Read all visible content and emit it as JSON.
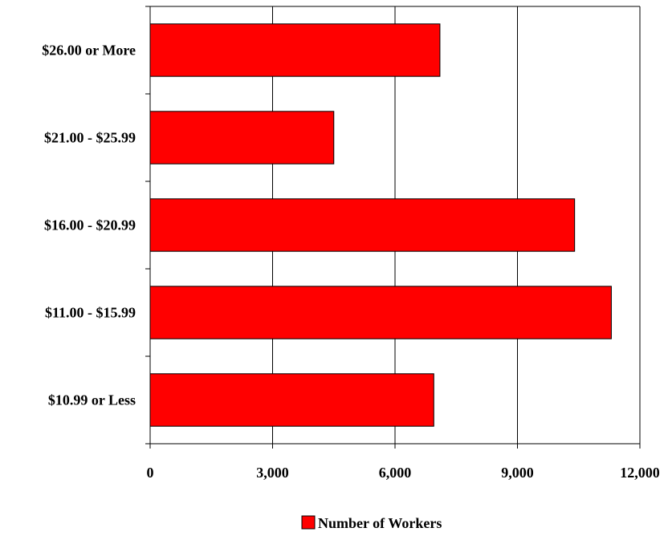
{
  "chart_data": {
    "type": "bar",
    "orientation": "horizontal",
    "categories": [
      "$26.00 or More",
      "$21.00 - $25.99",
      "$16.00 - $20.99",
      "$11.00 - $15.99",
      "$10.99 or Less"
    ],
    "series": [
      {
        "name": "Number of Workers",
        "values": [
          7100,
          4500,
          10400,
          11300,
          6950
        ]
      }
    ],
    "xlim": [
      0,
      12000
    ],
    "x_ticks": [
      0,
      3000,
      6000,
      9000,
      12000
    ],
    "x_tick_labels": [
      "0",
      "3,000",
      "6,000",
      "9,000",
      "12,000"
    ],
    "title": "",
    "xlabel": "",
    "ylabel": "",
    "grid": "vertical",
    "legend_position": "bottom",
    "colors": {
      "bar": "#ff0000",
      "bar_stroke": "#000000",
      "grid": "#000000",
      "axis": "#000000",
      "background": "#ffffff"
    }
  }
}
